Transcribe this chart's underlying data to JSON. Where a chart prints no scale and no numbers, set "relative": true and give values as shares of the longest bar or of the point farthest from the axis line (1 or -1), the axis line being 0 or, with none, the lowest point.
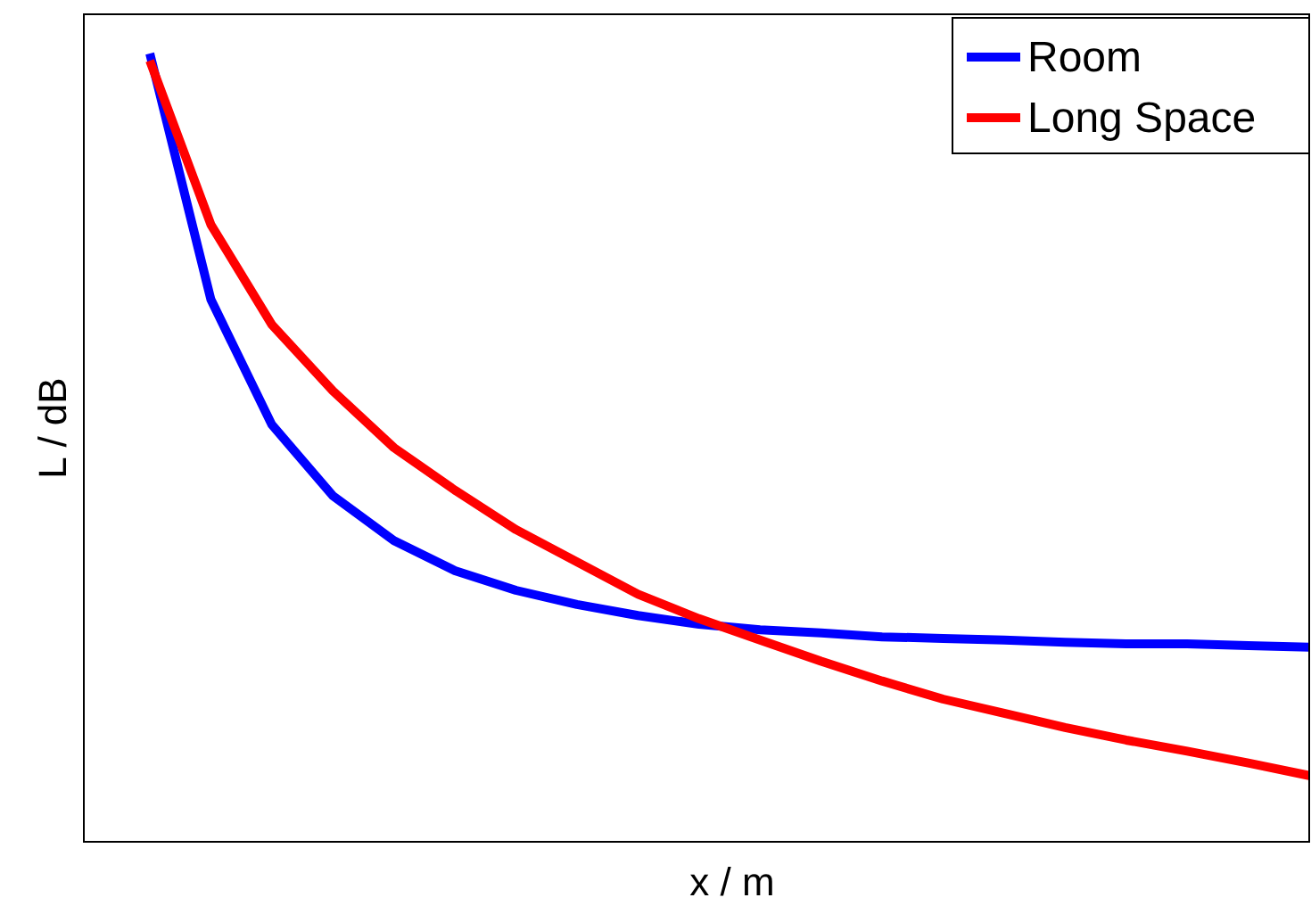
{
  "chart_data": {
    "type": "line",
    "relative": true,
    "xlabel": "x / m",
    "ylabel": "L / dB",
    "legend": "top right",
    "grid": false,
    "marker": "none",
    "line_style": "solid",
    "categories": [
      null,
      null,
      null,
      null,
      null,
      null,
      null,
      null,
      null,
      null,
      null,
      null,
      null,
      null,
      null,
      null,
      null,
      null,
      null,
      null
    ],
    "series": [
      {
        "name": "Room",
        "color": "#0000ff",
        "values": [
          1.0,
          0.688,
          0.529,
          0.439,
          0.382,
          0.344,
          0.319,
          0.301,
          0.287,
          0.276,
          0.269,
          0.265,
          0.26,
          0.258,
          0.256,
          0.253,
          0.251,
          0.251,
          0.249,
          0.247
        ]
      },
      {
        "name": "Long Space",
        "color": "#ff0000",
        "values": [
          0.991,
          0.783,
          0.656,
          0.572,
          0.5,
          0.446,
          0.396,
          0.355,
          0.314,
          0.283,
          0.256,
          0.229,
          0.204,
          0.181,
          0.163,
          0.145,
          0.129,
          0.115,
          0.1,
          0.084
        ]
      }
    ]
  }
}
